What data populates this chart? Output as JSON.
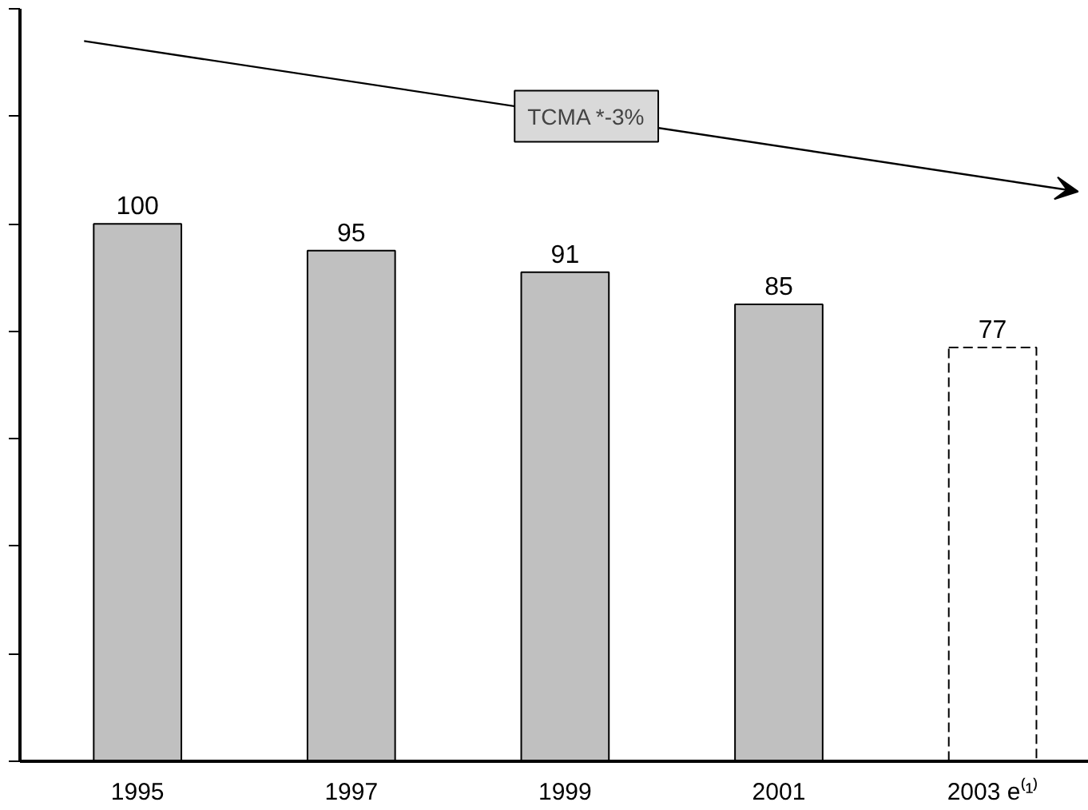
{
  "chart_data": {
    "type": "bar",
    "categories": [
      "1995",
      "1997",
      "1999",
      "2001",
      "2003 e⁽¹⁾"
    ],
    "series": [
      {
        "color": "#c0c0c0",
        "values": [
          100,
          95,
          91,
          85,
          null
        ]
      },
      {
        "color": "#ffffff",
        "values": [
          null,
          null,
          null,
          null,
          77
        ],
        "line_style": "dashed"
      }
    ],
    "stacked": true,
    "data_labels": true,
    "ylim": [
      0,
      140
    ],
    "yticks": [
      {
        "value": 0,
        "label": null
      },
      {
        "value": 20,
        "label": null
      },
      {
        "value": 40,
        "label": null
      },
      {
        "value": 60,
        "label": null
      },
      {
        "value": 80,
        "label": null
      },
      {
        "value": 100,
        "label": null
      },
      {
        "value": 120,
        "label": null
      },
      {
        "value": 140,
        "label": null
      }
    ],
    "annotations": [
      "TCMA *-3%"
    ],
    "grid": false
  }
}
